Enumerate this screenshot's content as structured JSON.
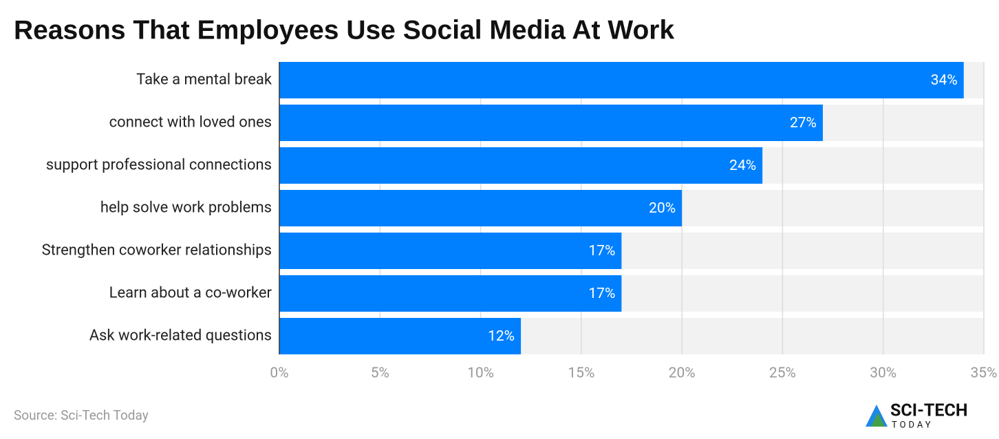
{
  "chart_data": {
    "type": "bar",
    "orientation": "horizontal",
    "title": "Reasons That Employees Use Social Media At Work",
    "categories": [
      "Take a mental break",
      "connect with loved ones",
      "support professional connections",
      "help solve work problems",
      "Strengthen coworker relationships",
      "Learn about a co-worker",
      "Ask work-related questions"
    ],
    "values": [
      34,
      27,
      24,
      20,
      17,
      17,
      12
    ],
    "value_labels": [
      "34%",
      "27%",
      "24%",
      "20%",
      "17%",
      "17%",
      "12%"
    ],
    "color": "#0080ff",
    "xlim": [
      0,
      35
    ],
    "xticks": [
      {
        "value": 0,
        "label": "0%"
      },
      {
        "value": 5,
        "label": "5%"
      },
      {
        "value": 10,
        "label": "10%"
      },
      {
        "value": 15,
        "label": "15%"
      },
      {
        "value": 20,
        "label": "20%"
      },
      {
        "value": 25,
        "label": "25%"
      },
      {
        "value": 30,
        "label": "30%"
      },
      {
        "value": 35,
        "label": "35%"
      }
    ],
    "grid": true,
    "source": "Source: Sci-Tech Today",
    "brand": "SCI-TECH",
    "brand_sub": "TODAY"
  }
}
